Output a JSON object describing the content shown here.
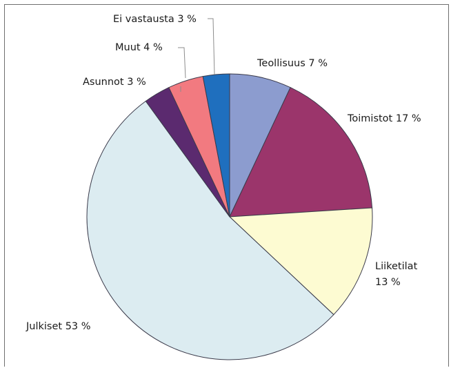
{
  "chart_data": {
    "type": "pie",
    "title": "",
    "slices": [
      {
        "label": "Teollisuus 7 %",
        "label_lines": [
          "Teollisuus 7 %"
        ],
        "value": 7,
        "color": "#8c9ccf"
      },
      {
        "label": "Toimistot 17 %",
        "label_lines": [
          "Toimistot 17 %"
        ],
        "value": 17,
        "color": "#9b356b"
      },
      {
        "label": "Liiketilat 13 %",
        "label_lines": [
          "Liiketilat",
          "13 %"
        ],
        "value": 13,
        "color": "#fdfbd2"
      },
      {
        "label": "Julkiset 53 %",
        "label_lines": [
          "Julkiset 53 %"
        ],
        "value": 53,
        "color": "#dcecf1"
      },
      {
        "label": "Asunnot 3 %",
        "label_lines": [
          "Asunnot 3 %"
        ],
        "value": 3,
        "color": "#5b2a6f"
      },
      {
        "label": "Muut 4 %",
        "label_lines": [
          "Muut 4 %"
        ],
        "value": 4,
        "color": "#f27a80"
      },
      {
        "label": "Ei vastausta 3 %",
        "label_lines": [
          "Ei vastausta 3 %"
        ],
        "value": 3,
        "color": "#1f6fbe"
      }
    ],
    "start_angle_deg": 0,
    "direction": "clockwise",
    "legend": "none"
  }
}
